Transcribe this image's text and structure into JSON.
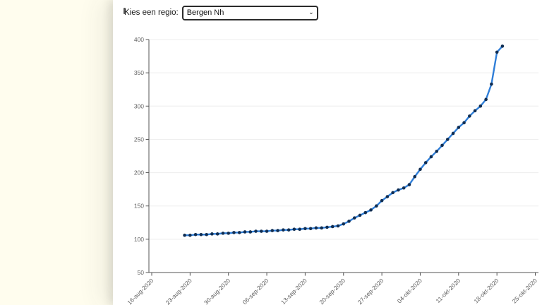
{
  "page": {
    "background_color": "#fffdee",
    "panel_color": "#ffffff"
  },
  "controls": {
    "label": "Kies een regio:",
    "select": {
      "value": "Bergen Nh",
      "options": [
        "Bergen Nh"
      ],
      "chevron": "⌄"
    }
  },
  "chart_data": {
    "type": "line",
    "title": "",
    "xlabel": "",
    "ylabel": "",
    "ylim": [
      50,
      400
    ],
    "y_ticks": [
      50,
      100,
      150,
      200,
      250,
      300,
      350,
      400
    ],
    "grid": true,
    "legend": "none",
    "line_color": "#2f7ed8",
    "marker_color": "#0f2d52",
    "axis_color": "#555555",
    "grid_color": "#ededed",
    "tick_label_color": "#606060",
    "x_tick_labels": [
      "16-aug-2020",
      "23-aug-2020",
      "30-aug-2020",
      "06-sep-2020",
      "13-sep-2020",
      "20-sep-2020",
      "27-sep-2020",
      "04-okt-2020",
      "11-okt-2020",
      "18-okt-2020",
      "25-okt-2020"
    ],
    "x_axis_start_date": "16-aug-2020",
    "x": [
      "22-aug-2020",
      "23-aug-2020",
      "24-aug-2020",
      "25-aug-2020",
      "26-aug-2020",
      "27-aug-2020",
      "28-aug-2020",
      "29-aug-2020",
      "30-aug-2020",
      "31-aug-2020",
      "01-sep-2020",
      "02-sep-2020",
      "03-sep-2020",
      "04-sep-2020",
      "05-sep-2020",
      "06-sep-2020",
      "07-sep-2020",
      "08-sep-2020",
      "09-sep-2020",
      "10-sep-2020",
      "11-sep-2020",
      "12-sep-2020",
      "13-sep-2020",
      "14-sep-2020",
      "15-sep-2020",
      "16-sep-2020",
      "17-sep-2020",
      "18-sep-2020",
      "19-sep-2020",
      "20-sep-2020",
      "21-sep-2020",
      "22-sep-2020",
      "23-sep-2020",
      "24-sep-2020",
      "25-sep-2020",
      "26-sep-2020",
      "27-sep-2020",
      "28-sep-2020",
      "29-sep-2020",
      "30-sep-2020",
      "01-okt-2020",
      "02-okt-2020",
      "03-okt-2020",
      "04-okt-2020",
      "05-okt-2020",
      "06-okt-2020",
      "07-okt-2020",
      "08-okt-2020",
      "09-okt-2020",
      "10-okt-2020",
      "11-okt-2020",
      "12-okt-2020",
      "13-okt-2020",
      "14-okt-2020",
      "15-okt-2020",
      "16-okt-2020",
      "17-okt-2020",
      "18-okt-2020",
      "19-okt-2020"
    ],
    "values": [
      106,
      106,
      107,
      107,
      107,
      108,
      108,
      109,
      109,
      110,
      110,
      111,
      111,
      112,
      112,
      112,
      113,
      113,
      114,
      114,
      115,
      115,
      116,
      116,
      117,
      117,
      118,
      119,
      120,
      123,
      127,
      132,
      136,
      140,
      144,
      150,
      158,
      164,
      170,
      174,
      177,
      182,
      194,
      205,
      215,
      224,
      232,
      241,
      250,
      259,
      268,
      275,
      285,
      293,
      300,
      310,
      333,
      381,
      390
    ]
  }
}
